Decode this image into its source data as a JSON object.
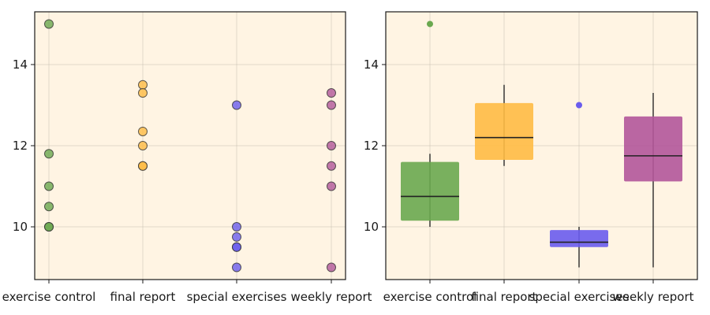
{
  "chart_data": [
    {
      "type": "scatter",
      "title": "",
      "xlabel": "",
      "ylabel": "",
      "categories": [
        "exercise control",
        "final report",
        "special exercises",
        "weekly report"
      ],
      "colors": [
        "#6aa84f",
        "#ffbb44",
        "#6a5ced",
        "#b2579a"
      ],
      "background": "#fff4e3",
      "ylim": [
        8.7,
        15.3
      ],
      "yticks": [
        10,
        12,
        14
      ],
      "grid": true,
      "points": [
        [
          15.0,
          11.8,
          11.0,
          10.5,
          10.0,
          10.0
        ],
        [
          13.5,
          13.3,
          12.35,
          12.0,
          11.5,
          11.5
        ],
        [
          13.0,
          10.0,
          9.75,
          9.5,
          9.5,
          9.0
        ],
        [
          13.3,
          13.0,
          12.0,
          11.5,
          11.0,
          9.0
        ]
      ]
    },
    {
      "type": "box",
      "title": "",
      "xlabel": "",
      "ylabel": "",
      "categories": [
        "exercise control",
        "final report",
        "special exercises",
        "weekly report"
      ],
      "colors": [
        "#6aa84f",
        "#ffbb44",
        "#6a5ced",
        "#b2579a"
      ],
      "background": "#fff4e3",
      "ylim": [
        8.7,
        15.3
      ],
      "yticks": [
        10,
        12,
        14
      ],
      "grid": true,
      "boxes": [
        {
          "q1": 10.15,
          "median": 10.75,
          "q3": 11.6,
          "whisker_low": 10.0,
          "whisker_high": 11.8,
          "outliers": [
            15.0
          ]
        },
        {
          "q1": 11.65,
          "median": 12.2,
          "q3": 13.05,
          "whisker_low": 11.5,
          "whisker_high": 13.5,
          "outliers": []
        },
        {
          "q1": 9.5,
          "median": 9.62,
          "q3": 9.92,
          "whisker_low": 9.0,
          "whisker_high": 10.0,
          "outliers": [
            13.0
          ]
        },
        {
          "q1": 11.12,
          "median": 11.75,
          "q3": 12.72,
          "whisker_low": 9.0,
          "whisker_high": 13.3,
          "outliers": []
        }
      ]
    }
  ]
}
